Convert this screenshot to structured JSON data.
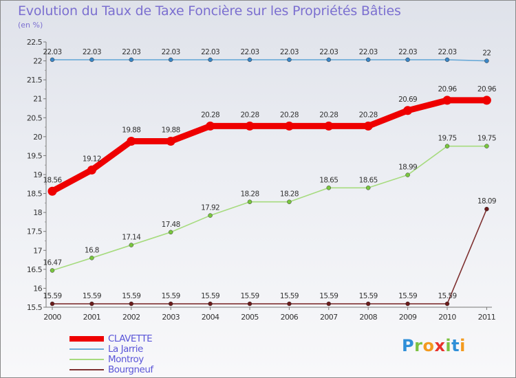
{
  "title": "Evolution du Taux de Taxe Foncière sur les Propriétés Bâties",
  "subtitle": "(en %)",
  "logo": {
    "text": "Proxiti",
    "letter_colors": [
      "#2f8fd8",
      "#7cc242",
      "#f39a1e",
      "#e8322b",
      "#7cc242",
      "#2f8fd8",
      "#f39a1e"
    ]
  },
  "chart_data": {
    "type": "line",
    "title": "Evolution du Taux de Taxe Foncière sur les Propriétés Bâties",
    "ylabel": "(en %)",
    "xlabel": "",
    "ylim": [
      15.5,
      22.5
    ],
    "yticks": [
      "15.5",
      "16",
      "16.5",
      "17",
      "17.5",
      "18",
      "18.5",
      "19",
      "19.5",
      "20",
      "20.5",
      "21",
      "21.5",
      "22",
      "22.5"
    ],
    "categories": [
      "2000",
      "2001",
      "2002",
      "2003",
      "2004",
      "2005",
      "2006",
      "2007",
      "2008",
      "2009",
      "2010",
      "2011"
    ],
    "grid": false,
    "legend_position": "bottom-left",
    "series": [
      {
        "name": "CLAVETTE",
        "color": "#ee0000",
        "emphasis": true,
        "values": [
          18.56,
          19.12,
          19.88,
          19.88,
          20.28,
          20.28,
          20.28,
          20.28,
          20.28,
          20.69,
          20.96,
          20.96
        ],
        "labels": [
          "18.56",
          "19.12",
          "19.88",
          "19.88",
          "20.28",
          "20.28",
          "20.28",
          "20.28",
          "20.28",
          "20.69",
          "20.96",
          "20.96"
        ]
      },
      {
        "name": "La Jarrie",
        "color": "#6aaad8",
        "marker": "#3b86c6",
        "emphasis": false,
        "values": [
          22.03,
          22.03,
          22.03,
          22.03,
          22.03,
          22.03,
          22.03,
          22.03,
          22.03,
          22.03,
          22.03,
          22.0
        ],
        "labels": [
          "22.03",
          "22.03",
          "22.03",
          "22.03",
          "22.03",
          "22.03",
          "22.03",
          "22.03",
          "22.03",
          "22.03",
          "22.03",
          "22"
        ]
      },
      {
        "name": "Montroy",
        "color": "#a6db7e",
        "marker": "#79c63e",
        "emphasis": false,
        "values": [
          16.47,
          16.8,
          17.14,
          17.48,
          17.92,
          18.28,
          18.28,
          18.65,
          18.65,
          18.99,
          19.75,
          19.75
        ],
        "labels": [
          "16.47",
          "16.8",
          "17.14",
          "17.48",
          "17.92",
          "18.28",
          "18.28",
          "18.65",
          "18.65",
          "18.99",
          "19.75",
          "19.75"
        ]
      },
      {
        "name": "Bourgneuf",
        "color": "#7e3030",
        "marker": "#6b1a1a",
        "emphasis": false,
        "values": [
          15.59,
          15.59,
          15.59,
          15.59,
          15.59,
          15.59,
          15.59,
          15.59,
          15.59,
          15.59,
          15.59,
          18.09
        ],
        "labels": [
          "15.59",
          "15.59",
          "15.59",
          "15.59",
          "15.59",
          "15.59",
          "15.59",
          "15.59",
          "15.59",
          "15.59",
          "15.59",
          "18.09"
        ]
      }
    ]
  }
}
